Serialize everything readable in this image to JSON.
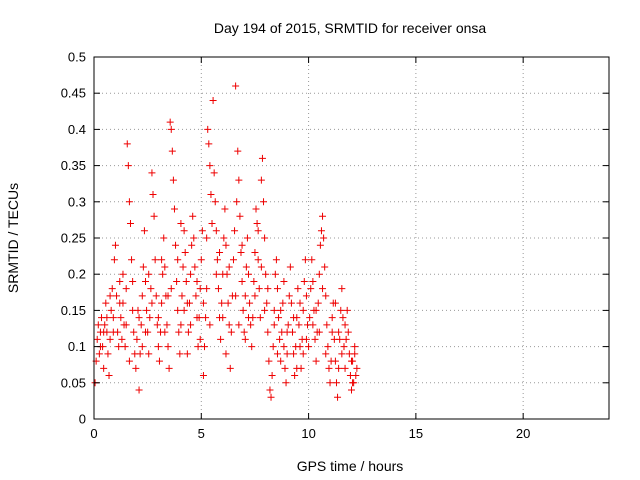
{
  "chart_data": {
    "type": "scatter",
    "title": "Day 194 of 2015, SRMTID for receiver onsa",
    "xlabel": "GPS time / hours",
    "ylabel": "SRMTID / TECUs",
    "xlim": [
      0,
      24
    ],
    "ylim": [
      0,
      0.5
    ],
    "xticks": [
      0,
      5,
      10,
      15,
      20
    ],
    "xtick_labels": [
      "0",
      "5",
      "10",
      "15",
      "20"
    ],
    "yticks": [
      0,
      0.05,
      0.1,
      0.15,
      0.2,
      0.25,
      0.3,
      0.35,
      0.4,
      0.45,
      0.5
    ],
    "ytick_labels": [
      "0",
      "0.05",
      "0.1",
      "0.15",
      "0.2",
      "0.25",
      "0.3",
      "0.35",
      "0.4",
      "0.45",
      "0.5"
    ],
    "grid": true,
    "marker": "plus",
    "series": [
      {
        "name": "SRMTID",
        "color": "#ee0000",
        "points": [
          [
            0.05,
            0.05
          ],
          [
            0.1,
            0.08
          ],
          [
            0.15,
            0.11
          ],
          [
            0.2,
            0.13
          ],
          [
            0.25,
            0.09
          ],
          [
            0.3,
            0.12
          ],
          [
            0.35,
            0.14
          ],
          [
            0.4,
            0.1
          ],
          [
            0.45,
            0.07
          ],
          [
            0.5,
            0.13
          ],
          [
            0.55,
            0.16
          ],
          [
            0.6,
            0.12
          ],
          [
            0.65,
            0.09
          ],
          [
            0.7,
            0.06
          ],
          [
            0.75,
            0.11
          ],
          [
            0.8,
            0.15
          ],
          [
            0.85,
            0.18
          ],
          [
            0.9,
            0.14
          ],
          [
            0.95,
            0.22
          ],
          [
            1.0,
            0.24
          ],
          [
            1.05,
            0.17
          ],
          [
            1.1,
            0.12
          ],
          [
            1.15,
            0.1
          ],
          [
            1.2,
            0.19
          ],
          [
            1.25,
            0.14
          ],
          [
            1.3,
            0.11
          ],
          [
            1.35,
            0.16
          ],
          [
            1.4,
            0.13
          ],
          [
            1.45,
            0.1
          ],
          [
            1.5,
            0.18
          ],
          [
            1.55,
            0.38
          ],
          [
            1.6,
            0.35
          ],
          [
            1.65,
            0.3
          ],
          [
            1.7,
            0.27
          ],
          [
            1.75,
            0.22
          ],
          [
            1.8,
            0.15
          ],
          [
            1.85,
            0.12
          ],
          [
            1.9,
            0.09
          ],
          [
            1.95,
            0.07
          ],
          [
            2.0,
            0.11
          ],
          [
            2.05,
            0.15
          ],
          [
            2.1,
            0.04
          ],
          [
            2.15,
            0.09
          ],
          [
            2.2,
            0.13
          ],
          [
            2.25,
            0.17
          ],
          [
            2.3,
            0.21
          ],
          [
            2.35,
            0.26
          ],
          [
            2.4,
            0.19
          ],
          [
            2.45,
            0.15
          ],
          [
            2.5,
            0.12
          ],
          [
            2.55,
            0.09
          ],
          [
            2.6,
            0.14
          ],
          [
            2.65,
            0.18
          ],
          [
            2.7,
            0.34
          ],
          [
            2.75,
            0.31
          ],
          [
            2.8,
            0.28
          ],
          [
            2.85,
            0.22
          ],
          [
            2.9,
            0.17
          ],
          [
            2.95,
            0.13
          ],
          [
            3.0,
            0.1
          ],
          [
            3.05,
            0.08
          ],
          [
            3.1,
            0.12
          ],
          [
            3.15,
            0.16
          ],
          [
            3.2,
            0.2
          ],
          [
            3.25,
            0.25
          ],
          [
            3.3,
            0.21
          ],
          [
            3.35,
            0.17
          ],
          [
            3.4,
            0.13
          ],
          [
            3.45,
            0.1
          ],
          [
            3.5,
            0.07
          ],
          [
            3.55,
            0.41
          ],
          [
            3.6,
            0.4
          ],
          [
            3.65,
            0.37
          ],
          [
            3.7,
            0.33
          ],
          [
            3.75,
            0.29
          ],
          [
            3.8,
            0.24
          ],
          [
            3.85,
            0.19
          ],
          [
            3.9,
            0.15
          ],
          [
            3.95,
            0.12
          ],
          [
            4.0,
            0.09
          ],
          [
            4.05,
            0.13
          ],
          [
            4.1,
            0.17
          ],
          [
            4.15,
            0.21
          ],
          [
            4.2,
            0.26
          ],
          [
            4.25,
            0.23
          ],
          [
            4.3,
            0.19
          ],
          [
            4.35,
            0.16
          ],
          [
            4.4,
            0.12
          ],
          [
            4.45,
            0.16
          ],
          [
            4.5,
            0.2
          ],
          [
            4.55,
            0.24
          ],
          [
            4.6,
            0.28
          ],
          [
            4.65,
            0.25
          ],
          [
            4.7,
            0.21
          ],
          [
            4.75,
            0.17
          ],
          [
            4.8,
            0.14
          ],
          [
            4.85,
            0.1
          ],
          [
            4.9,
            0.14
          ],
          [
            4.95,
            0.18
          ],
          [
            5.0,
            0.22
          ],
          [
            5.05,
            0.26
          ],
          [
            5.1,
            0.06
          ],
          [
            5.15,
            0.1
          ],
          [
            5.2,
            0.14
          ],
          [
            5.25,
            0.18
          ],
          [
            5.3,
            0.4
          ],
          [
            5.35,
            0.38
          ],
          [
            5.4,
            0.35
          ],
          [
            5.45,
            0.31
          ],
          [
            5.5,
            0.27
          ],
          [
            5.55,
            0.44
          ],
          [
            5.6,
            0.34
          ],
          [
            5.65,
            0.3
          ],
          [
            5.7,
            0.26
          ],
          [
            5.75,
            0.22
          ],
          [
            5.8,
            0.18
          ],
          [
            5.85,
            0.14
          ],
          [
            5.9,
            0.11
          ],
          [
            5.95,
            0.16
          ],
          [
            6.0,
            0.2
          ],
          [
            6.05,
            0.25
          ],
          [
            6.1,
            0.29
          ],
          [
            6.15,
            0.24
          ],
          [
            6.2,
            0.2
          ],
          [
            6.25,
            0.16
          ],
          [
            6.3,
            0.13
          ],
          [
            6.35,
            0.07
          ],
          [
            6.4,
            0.12
          ],
          [
            6.45,
            0.17
          ],
          [
            6.5,
            0.22
          ],
          [
            6.55,
            0.26
          ],
          [
            6.6,
            0.46
          ],
          [
            6.65,
            0.3
          ],
          [
            6.7,
            0.37
          ],
          [
            6.75,
            0.33
          ],
          [
            6.8,
            0.28
          ],
          [
            6.85,
            0.23
          ],
          [
            6.9,
            0.19
          ],
          [
            6.95,
            0.15
          ],
          [
            7.0,
            0.12
          ],
          [
            7.05,
            0.17
          ],
          [
            7.1,
            0.21
          ],
          [
            7.15,
            0.25
          ],
          [
            7.2,
            0.2
          ],
          [
            7.25,
            0.16
          ],
          [
            7.3,
            0.13
          ],
          [
            7.35,
            0.1
          ],
          [
            7.4,
            0.14
          ],
          [
            7.45,
            0.19
          ],
          [
            7.5,
            0.23
          ],
          [
            7.55,
            0.29
          ],
          [
            7.6,
            0.27
          ],
          [
            7.65,
            0.22
          ],
          [
            7.7,
            0.18
          ],
          [
            7.75,
            0.14
          ],
          [
            7.8,
            0.33
          ],
          [
            7.85,
            0.36
          ],
          [
            7.9,
            0.3
          ],
          [
            7.95,
            0.25
          ],
          [
            8.0,
            0.2
          ],
          [
            8.05,
            0.16
          ],
          [
            8.1,
            0.12
          ],
          [
            8.15,
            0.08
          ],
          [
            8.2,
            0.04
          ],
          [
            8.25,
            0.03
          ],
          [
            8.3,
            0.06
          ],
          [
            8.35,
            0.1
          ],
          [
            8.4,
            0.15
          ],
          [
            8.45,
            0.2
          ],
          [
            8.5,
            0.22
          ],
          [
            8.55,
            0.18
          ],
          [
            8.6,
            0.14
          ],
          [
            8.65,
            0.11
          ],
          [
            8.7,
            0.08
          ],
          [
            8.75,
            0.12
          ],
          [
            8.8,
            0.16
          ],
          [
            8.85,
            0.1
          ],
          [
            8.9,
            0.07
          ],
          [
            8.95,
            0.05
          ],
          [
            9.0,
            0.09
          ],
          [
            9.05,
            0.13
          ],
          [
            9.1,
            0.17
          ],
          [
            9.15,
            0.21
          ],
          [
            9.2,
            0.16
          ],
          [
            9.25,
            0.12
          ],
          [
            9.3,
            0.09
          ],
          [
            9.35,
            0.06
          ],
          [
            9.4,
            0.1
          ],
          [
            9.45,
            0.14
          ],
          [
            9.5,
            0.18
          ],
          [
            9.55,
            0.13
          ],
          [
            9.6,
            0.1
          ],
          [
            9.65,
            0.07
          ],
          [
            9.7,
            0.11
          ],
          [
            9.75,
            0.15
          ],
          [
            9.8,
            0.19
          ],
          [
            9.85,
            0.22
          ],
          [
            9.9,
            0.17
          ],
          [
            9.95,
            0.13
          ],
          [
            10.0,
            0.1
          ],
          [
            10.05,
            0.14
          ],
          [
            10.1,
            0.18
          ],
          [
            10.15,
            0.22
          ],
          [
            10.2,
            0.19
          ],
          [
            10.25,
            0.15
          ],
          [
            10.3,
            0.11
          ],
          [
            10.35,
            0.08
          ],
          [
            10.4,
            0.12
          ],
          [
            10.45,
            0.16
          ],
          [
            10.5,
            0.2
          ],
          [
            10.55,
            0.24
          ],
          [
            10.6,
            0.26
          ],
          [
            10.65,
            0.28
          ],
          [
            10.7,
            0.25
          ],
          [
            10.75,
            0.21
          ],
          [
            10.8,
            0.17
          ],
          [
            10.85,
            0.13
          ],
          [
            10.9,
            0.1
          ],
          [
            10.95,
            0.07
          ],
          [
            11.0,
            0.05
          ],
          [
            11.05,
            0.08
          ],
          [
            11.1,
            0.12
          ],
          [
            11.15,
            0.16
          ],
          [
            11.2,
            0.11
          ],
          [
            11.25,
            0.08
          ],
          [
            11.3,
            0.05
          ],
          [
            11.35,
            0.03
          ],
          [
            11.4,
            0.07
          ],
          [
            11.45,
            0.11
          ],
          [
            11.5,
            0.15
          ],
          [
            11.55,
            0.18
          ],
          [
            11.6,
            0.14
          ],
          [
            11.65,
            0.1
          ],
          [
            11.7,
            0.07
          ],
          [
            11.75,
            0.11
          ],
          [
            11.8,
            0.15
          ],
          [
            11.85,
            0.12
          ],
          [
            11.9,
            0.09
          ],
          [
            11.95,
            0.06
          ],
          [
            12.0,
            0.04
          ],
          [
            12.05,
            0.08
          ],
          [
            12.1,
            0.05
          ],
          [
            12.15,
            0.09
          ],
          [
            12.2,
            0.06
          ],
          [
            12.25,
            0.07
          ],
          [
            0.3,
            0.1
          ],
          [
            0.6,
            0.14
          ],
          [
            0.9,
            0.12
          ],
          [
            1.2,
            0.16
          ],
          [
            1.5,
            0.13
          ],
          [
            1.8,
            0.19
          ],
          [
            2.1,
            0.14
          ],
          [
            2.4,
            0.12
          ],
          [
            2.7,
            0.16
          ],
          [
            3.0,
            0.14
          ],
          [
            3.3,
            0.12
          ],
          [
            3.6,
            0.18
          ],
          [
            3.9,
            0.22
          ],
          [
            4.2,
            0.15
          ],
          [
            4.5,
            0.13
          ],
          [
            4.8,
            0.19
          ],
          [
            5.1,
            0.16
          ],
          [
            5.4,
            0.13
          ],
          [
            5.7,
            0.2
          ],
          [
            6.0,
            0.14
          ],
          [
            6.3,
            0.21
          ],
          [
            6.6,
            0.17
          ],
          [
            6.9,
            0.24
          ],
          [
            7.2,
            0.14
          ],
          [
            7.5,
            0.17
          ],
          [
            7.8,
            0.21
          ],
          [
            8.1,
            0.18
          ],
          [
            8.4,
            0.13
          ],
          [
            8.7,
            0.15
          ],
          [
            9.0,
            0.12
          ],
          [
            9.3,
            0.14
          ],
          [
            9.6,
            0.16
          ],
          [
            9.9,
            0.11
          ],
          [
            10.2,
            0.13
          ],
          [
            10.5,
            0.12
          ],
          [
            10.8,
            0.09
          ],
          [
            11.1,
            0.14
          ],
          [
            11.4,
            0.12
          ],
          [
            11.7,
            0.13
          ],
          [
            12.0,
            0.08
          ],
          [
            0.45,
            0.12
          ],
          [
            1.35,
            0.2
          ],
          [
            2.25,
            0.1
          ],
          [
            3.15,
            0.22
          ],
          [
            4.05,
            0.27
          ],
          [
            4.95,
            0.11
          ],
          [
            5.85,
            0.23
          ],
          [
            6.75,
            0.13
          ],
          [
            7.65,
            0.26
          ],
          [
            8.55,
            0.09
          ],
          [
            9.45,
            0.07
          ],
          [
            10.35,
            0.15
          ],
          [
            11.25,
            0.16
          ],
          [
            12.15,
            0.1
          ],
          [
            0.75,
            0.17
          ],
          [
            1.65,
            0.08
          ],
          [
            2.55,
            0.2
          ],
          [
            3.45,
            0.17
          ],
          [
            4.35,
            0.09
          ],
          [
            5.25,
            0.25
          ],
          [
            6.15,
            0.09
          ],
          [
            7.05,
            0.11
          ],
          [
            7.95,
            0.15
          ],
          [
            8.85,
            0.19
          ],
          [
            9.75,
            0.09
          ],
          [
            10.65,
            0.18
          ],
          [
            11.55,
            0.09
          ],
          [
            12.05,
            0.05
          ]
        ]
      }
    ]
  }
}
